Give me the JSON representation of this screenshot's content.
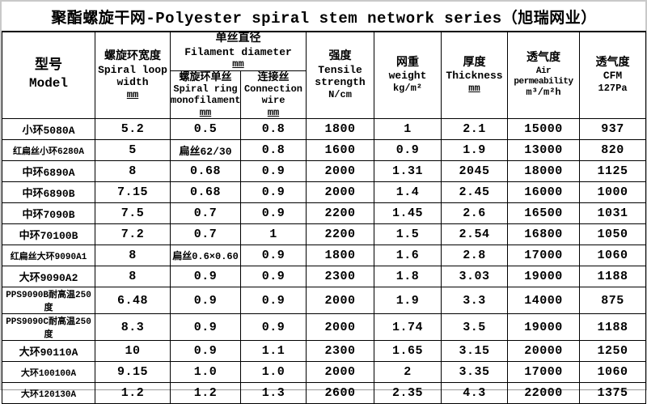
{
  "title": "聚酯螺旋干网-Polyester spiral stem network series（旭瑞网业）",
  "columns": {
    "model": {
      "zh": "型号",
      "en": "Model"
    },
    "loop_width": {
      "zh": "螺旋环宽度",
      "en": "Spiral loop width",
      "unit": "mm"
    },
    "filament_group": {
      "zh": "单丝直径",
      "en": "Filament diameter",
      "unit": "mm"
    },
    "monofilament": {
      "zh": "螺旋环单丝",
      "en": "Spiral ring monofilament",
      "unit": "mm"
    },
    "connection": {
      "zh": "连接丝",
      "en": "Connection wire",
      "unit": "mm"
    },
    "tensile": {
      "zh": "强度",
      "en": "Tensile strength",
      "unit": "N/cm"
    },
    "weight": {
      "zh": "网重",
      "en": "weight",
      "unit": "kg/m²"
    },
    "thickness": {
      "zh": "厚度",
      "en": "Thickness",
      "unit": "mm"
    },
    "air": {
      "zh": "透气度",
      "en": "Air permeability",
      "unit": "m³/m²h"
    },
    "cfm": {
      "zh": "透气度",
      "en": "CFM",
      "unit": "127Pa"
    }
  },
  "rows": [
    {
      "model": "小环5080A",
      "loop_width": "5.2",
      "monofilament": "0.5",
      "connection": "0.8",
      "tensile": "1800",
      "weight": "1",
      "thickness": "2.1",
      "air": "15000",
      "cfm": "937"
    },
    {
      "model": "红扁丝小环6280A",
      "loop_width": "5",
      "monofilament": "扁丝62/30",
      "connection": "0.8",
      "tensile": "1600",
      "weight": "0.9",
      "thickness": "1.9",
      "air": "13000",
      "cfm": "820"
    },
    {
      "model": "中环6890A",
      "loop_width": "8",
      "monofilament": "0.68",
      "connection": "0.9",
      "tensile": "2000",
      "weight": "1.31",
      "thickness": "2045",
      "air": "18000",
      "cfm": "1125"
    },
    {
      "model": "中环6890B",
      "loop_width": "7.15",
      "monofilament": "0.68",
      "connection": "0.9",
      "tensile": "2000",
      "weight": "1.4",
      "thickness": "2.45",
      "air": "16000",
      "cfm": "1000"
    },
    {
      "model": "中环7090B",
      "loop_width": "7.5",
      "monofilament": "0.7",
      "connection": "0.9",
      "tensile": "2200",
      "weight": "1.45",
      "thickness": "2.6",
      "air": "16500",
      "cfm": "1031"
    },
    {
      "model": "中环70100B",
      "loop_width": "7.2",
      "monofilament": "0.7",
      "connection": "1",
      "tensile": "2200",
      "weight": "1.5",
      "thickness": "2.54",
      "air": "16800",
      "cfm": "1050"
    },
    {
      "model": "红扁丝大环9090A1",
      "loop_width": "8",
      "monofilament": "扁丝0.6×0.60",
      "connection": "0.9",
      "tensile": "1800",
      "weight": "1.6",
      "thickness": "2.8",
      "air": "17000",
      "cfm": "1060"
    },
    {
      "model": "大环9090A2",
      "loop_width": "8",
      "monofilament": "0.9",
      "connection": "0.9",
      "tensile": "2300",
      "weight": "1.8",
      "thickness": "3.03",
      "air": "19000",
      "cfm": "1188"
    },
    {
      "model": "PPS9090B耐高温250度",
      "loop_width": "6.48",
      "monofilament": "0.9",
      "connection": "0.9",
      "tensile": "2000",
      "weight": "1.9",
      "thickness": "3.3",
      "air": "14000",
      "cfm": "875"
    },
    {
      "model": "PPS9090C耐高温250度",
      "loop_width": "8.3",
      "monofilament": "0.9",
      "connection": "0.9",
      "tensile": "2000",
      "weight": "1.74",
      "thickness": "3.5",
      "air": "19000",
      "cfm": "1188"
    },
    {
      "model": "大环90110A",
      "loop_width": "10",
      "monofilament": "0.9",
      "connection": "1.1",
      "tensile": "2300",
      "weight": "1.65",
      "thickness": "3.15",
      "air": "20000",
      "cfm": "1250"
    },
    {
      "model": "大环100100A",
      "loop_width": "9.15",
      "monofilament": "1.0",
      "connection": "1.0",
      "tensile": "2000",
      "weight": "2",
      "thickness": "3.35",
      "air": "17000",
      "cfm": "1060"
    },
    {
      "model": "大环120130A",
      "loop_width": "1.2",
      "monofilament": "1.2",
      "connection": "1.3",
      "tensile": "2600",
      "weight": "2.35",
      "thickness": "4.3",
      "air": "22000",
      "cfm": "1375"
    }
  ]
}
